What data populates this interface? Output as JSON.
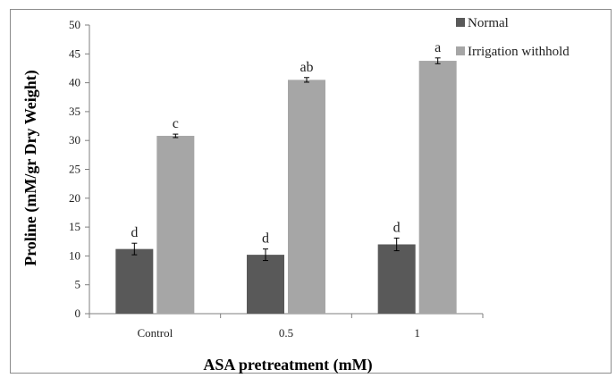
{
  "chart_data": {
    "type": "bar",
    "categories": [
      "Control",
      "0.5",
      "1"
    ],
    "series": [
      {
        "name": "Normal",
        "color": "#595959",
        "values": [
          11.2,
          10.2,
          12.0
        ],
        "errors": [
          1.0,
          1.0,
          1.1
        ],
        "labels": [
          "d",
          "d",
          "d"
        ]
      },
      {
        "name": "Irrigation withhold",
        "color": "#a6a6a6",
        "values": [
          30.8,
          40.5,
          43.8
        ],
        "errors": [
          0.3,
          0.4,
          0.5
        ],
        "labels": [
          "c",
          "ab",
          "a"
        ]
      }
    ],
    "title": "",
    "xlabel": "ASA pretreatment (mM)",
    "ylabel": "Proline (mM/gr Dry Weight)",
    "ylim": [
      0,
      50
    ],
    "yticks": [
      "0",
      "5",
      "10",
      "15",
      "20",
      "25",
      "30",
      "35",
      "40",
      "45",
      "50"
    ],
    "grid": false,
    "legend": "top-right"
  }
}
